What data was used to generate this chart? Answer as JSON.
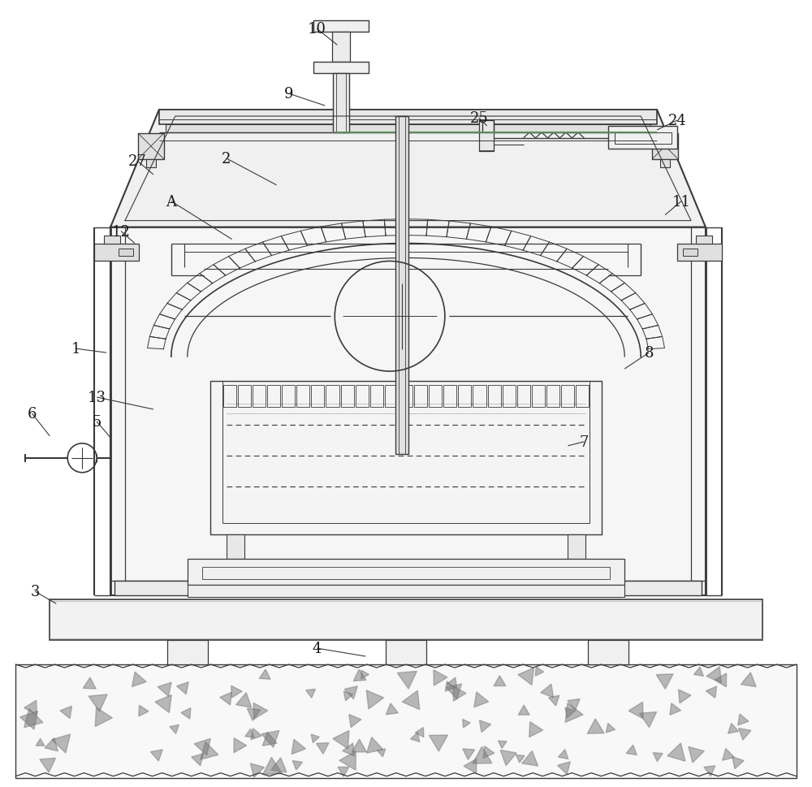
{
  "bg_color": "#ffffff",
  "lc": "#3a3a3a",
  "lc2": "#5a8a5a",
  "lc_gray": "#888888",
  "figsize": [
    10.0,
    9.7
  ],
  "dpi": 100
}
